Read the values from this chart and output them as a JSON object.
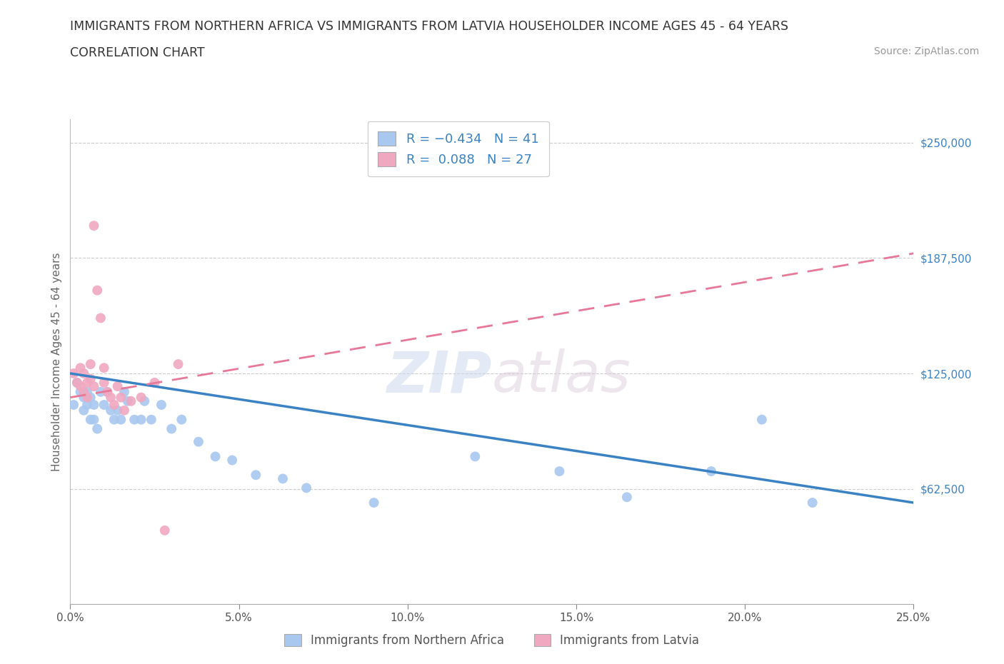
{
  "title_line1": "IMMIGRANTS FROM NORTHERN AFRICA VS IMMIGRANTS FROM LATVIA HOUSEHOLDER INCOME AGES 45 - 64 YEARS",
  "title_line2": "CORRELATION CHART",
  "source_text": "Source: ZipAtlas.com",
  "ylabel": "Householder Income Ages 45 - 64 years",
  "xlim": [
    0.0,
    0.25
  ],
  "ylim": [
    0,
    262500
  ],
  "xtick_labels": [
    "0.0%",
    "5.0%",
    "10.0%",
    "15.0%",
    "20.0%",
    "25.0%"
  ],
  "xtick_vals": [
    0.0,
    0.05,
    0.1,
    0.15,
    0.2,
    0.25
  ],
  "ytick_labels": [
    "$62,500",
    "$125,000",
    "$187,500",
    "$250,000"
  ],
  "ytick_vals": [
    62500,
    125000,
    187500,
    250000
  ],
  "hline_vals": [
    62500,
    125000,
    187500,
    250000
  ],
  "blue_scatter_color": "#a8c8f0",
  "pink_scatter_color": "#f0a8c0",
  "blue_line_color": "#3b82c4",
  "pink_line_color": "#e87898",
  "legend_series1": "Immigrants from Northern Africa",
  "legend_series2": "Immigrants from Latvia",
  "blue_x": [
    0.001,
    0.002,
    0.003,
    0.004,
    0.004,
    0.005,
    0.005,
    0.006,
    0.006,
    0.007,
    0.007,
    0.008,
    0.009,
    0.01,
    0.011,
    0.012,
    0.013,
    0.014,
    0.015,
    0.016,
    0.017,
    0.019,
    0.021,
    0.022,
    0.024,
    0.027,
    0.03,
    0.033,
    0.038,
    0.043,
    0.048,
    0.055,
    0.063,
    0.07,
    0.09,
    0.12,
    0.145,
    0.165,
    0.19,
    0.205,
    0.22
  ],
  "blue_y": [
    108000,
    120000,
    115000,
    105000,
    112000,
    108000,
    115000,
    100000,
    112000,
    108000,
    100000,
    95000,
    115000,
    108000,
    115000,
    105000,
    100000,
    105000,
    100000,
    115000,
    110000,
    100000,
    100000,
    110000,
    100000,
    108000,
    95000,
    100000,
    88000,
    80000,
    78000,
    70000,
    68000,
    63000,
    55000,
    80000,
    72000,
    58000,
    72000,
    100000,
    55000
  ],
  "pink_x": [
    0.001,
    0.002,
    0.003,
    0.003,
    0.004,
    0.004,
    0.005,
    0.005,
    0.006,
    0.006,
    0.007,
    0.007,
    0.008,
    0.009,
    0.01,
    0.01,
    0.011,
    0.012,
    0.013,
    0.014,
    0.015,
    0.016,
    0.018,
    0.021,
    0.025,
    0.028,
    0.032
  ],
  "pink_y": [
    125000,
    120000,
    118000,
    128000,
    115000,
    125000,
    112000,
    120000,
    122000,
    130000,
    118000,
    205000,
    170000,
    155000,
    128000,
    120000,
    115000,
    112000,
    108000,
    118000,
    112000,
    105000,
    110000,
    112000,
    120000,
    40000,
    130000
  ],
  "blue_line_x0": 0.0,
  "blue_line_x1": 0.25,
  "blue_line_y0": 125000,
  "blue_line_y1": 55000,
  "pink_line_x0": 0.0,
  "pink_line_x1": 0.25,
  "pink_line_y0": 112000,
  "pink_line_y1": 190000
}
